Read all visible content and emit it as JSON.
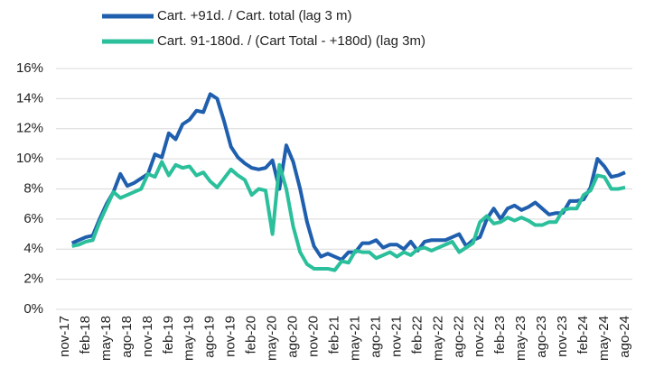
{
  "chart_data": {
    "type": "line",
    "categories": [
      "nov-17",
      null,
      null,
      "feb-18",
      null,
      null,
      "may-18",
      null,
      null,
      "ago-18",
      null,
      null,
      "nov-18",
      null,
      null,
      "feb-19",
      null,
      null,
      "may-19",
      null,
      null,
      "ago-19",
      null,
      null,
      "nov-19",
      null,
      null,
      "feb-20",
      null,
      null,
      "may-20",
      null,
      null,
      "ago-20",
      null,
      null,
      "nov-20",
      null,
      null,
      "feb-21",
      null,
      null,
      "may-21",
      null,
      null,
      "ago-21",
      null,
      null,
      "nov-21",
      null,
      null,
      "feb-22",
      null,
      null,
      "may-22",
      null,
      null,
      "ago-22",
      null,
      null,
      "nov-22",
      null,
      null,
      "feb-23",
      null,
      null,
      "may-23",
      null,
      null,
      "ago-23",
      null,
      null,
      "nov-23",
      null,
      null,
      "feb-24",
      null,
      null,
      "may-24",
      null,
      null,
      "ago-24"
    ],
    "series": [
      {
        "name": "Cart. +91d. / Cart. total (lag 3 m)",
        "color": "#1f5fae",
        "values": [
          null,
          4.4,
          4.6,
          4.8,
          4.9,
          6.0,
          7.0,
          7.8,
          9.0,
          8.2,
          8.4,
          8.7,
          9.0,
          10.3,
          10.1,
          11.7,
          11.3,
          12.3,
          12.6,
          13.2,
          13.1,
          14.3,
          14.0,
          12.5,
          10.8,
          10.1,
          9.7,
          9.4,
          9.3,
          9.4,
          9.9,
          8.0,
          10.9,
          9.8,
          8.0,
          5.8,
          4.2,
          3.5,
          3.7,
          3.5,
          3.3,
          3.8,
          3.8,
          4.4,
          4.4,
          4.6,
          4.1,
          4.3,
          4.3,
          4.0,
          4.5,
          3.9,
          4.5,
          4.6,
          4.6,
          4.6,
          4.8,
          5.0,
          4.2,
          4.6,
          4.8,
          6.0,
          6.7,
          6.0,
          6.7,
          6.9,
          6.6,
          6.8,
          7.1,
          6.7,
          6.3,
          6.4,
          6.4,
          7.2,
          7.2,
          7.3,
          8.1,
          10.0,
          9.5,
          8.8,
          8.9,
          9.1
        ]
      },
      {
        "name": "Cart. 91-180d. / (Cart Total - +180d) (lag 3m)",
        "color": "#2bbf9b",
        "values": [
          null,
          4.2,
          4.3,
          4.5,
          4.6,
          5.8,
          6.8,
          7.8,
          7.4,
          7.6,
          7.8,
          8.0,
          9.0,
          8.8,
          9.8,
          8.9,
          9.6,
          9.4,
          9.5,
          8.9,
          9.1,
          8.5,
          8.1,
          8.7,
          9.3,
          8.9,
          8.6,
          7.6,
          8.0,
          7.9,
          5.0,
          9.6,
          8.0,
          5.5,
          3.8,
          3.0,
          2.7,
          2.7,
          2.7,
          2.6,
          3.2,
          3.1,
          3.9,
          3.8,
          3.8,
          3.4,
          3.6,
          3.8,
          3.5,
          3.8,
          3.6,
          4.0,
          4.1,
          3.9,
          4.1,
          4.3,
          4.5,
          3.8,
          4.1,
          4.4,
          5.8,
          6.2,
          5.7,
          5.8,
          6.1,
          5.9,
          6.1,
          5.9,
          5.6,
          5.6,
          5.8,
          5.8,
          6.6,
          6.7,
          6.7,
          7.6,
          7.9,
          8.9,
          8.8,
          8.0,
          8.0,
          8.1
        ]
      }
    ],
    "ylim": [
      0,
      16
    ],
    "yticks": [
      {
        "value": 0,
        "label": "0%"
      },
      {
        "value": 2,
        "label": "2%"
      },
      {
        "value": 4,
        "label": "4%"
      },
      {
        "value": 6,
        "label": "6%"
      },
      {
        "value": 8,
        "label": "8%"
      },
      {
        "value": 10,
        "label": "10%"
      },
      {
        "value": 12,
        "label": "12%"
      },
      {
        "value": 14,
        "label": "14%"
      },
      {
        "value": 16,
        "label": "16%"
      }
    ],
    "grid": true
  }
}
